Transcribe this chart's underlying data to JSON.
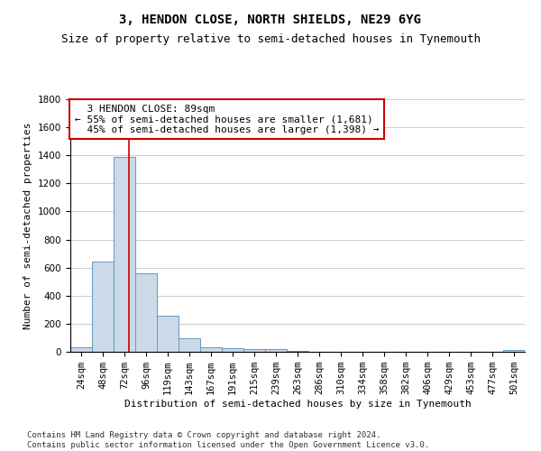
{
  "title": "3, HENDON CLOSE, NORTH SHIELDS, NE29 6YG",
  "subtitle": "Size of property relative to semi-detached houses in Tynemouth",
  "xlabel": "Distribution of semi-detached houses by size in Tynemouth",
  "ylabel": "Number of semi-detached properties",
  "bar_labels": [
    "24sqm",
    "48sqm",
    "72sqm",
    "96sqm",
    "119sqm",
    "143sqm",
    "167sqm",
    "191sqm",
    "215sqm",
    "239sqm",
    "263sqm",
    "286sqm",
    "310sqm",
    "334sqm",
    "358sqm",
    "382sqm",
    "406sqm",
    "429sqm",
    "453sqm",
    "477sqm",
    "501sqm"
  ],
  "bar_values": [
    30,
    645,
    1390,
    560,
    255,
    95,
    35,
    25,
    20,
    20,
    5,
    0,
    0,
    0,
    0,
    0,
    0,
    0,
    0,
    0,
    15
  ],
  "bar_color": "#ccd9e8",
  "bar_edge_color": "#6699bb",
  "grid_color": "#cccccc",
  "background_color": "#ffffff",
  "annotation_box_color": "#ffffff",
  "annotation_box_edge_color": "#cc0000",
  "property_line_color": "#cc0000",
  "property_size": 89,
  "property_label": "3 HENDON CLOSE: 89sqm",
  "pct_smaller": 55,
  "pct_smaller_count": 1681,
  "pct_larger": 45,
  "pct_larger_count": 1398,
  "ylim": [
    0,
    1800
  ],
  "yticks": [
    0,
    200,
    400,
    600,
    800,
    1000,
    1200,
    1400,
    1600,
    1800
  ],
  "footer": "Contains HM Land Registry data © Crown copyright and database right 2024.\nContains public sector information licensed under the Open Government Licence v3.0.",
  "title_fontsize": 10,
  "subtitle_fontsize": 9,
  "xlabel_fontsize": 8,
  "ylabel_fontsize": 8,
  "tick_fontsize": 7.5,
  "annotation_fontsize": 8,
  "footer_fontsize": 6.5
}
